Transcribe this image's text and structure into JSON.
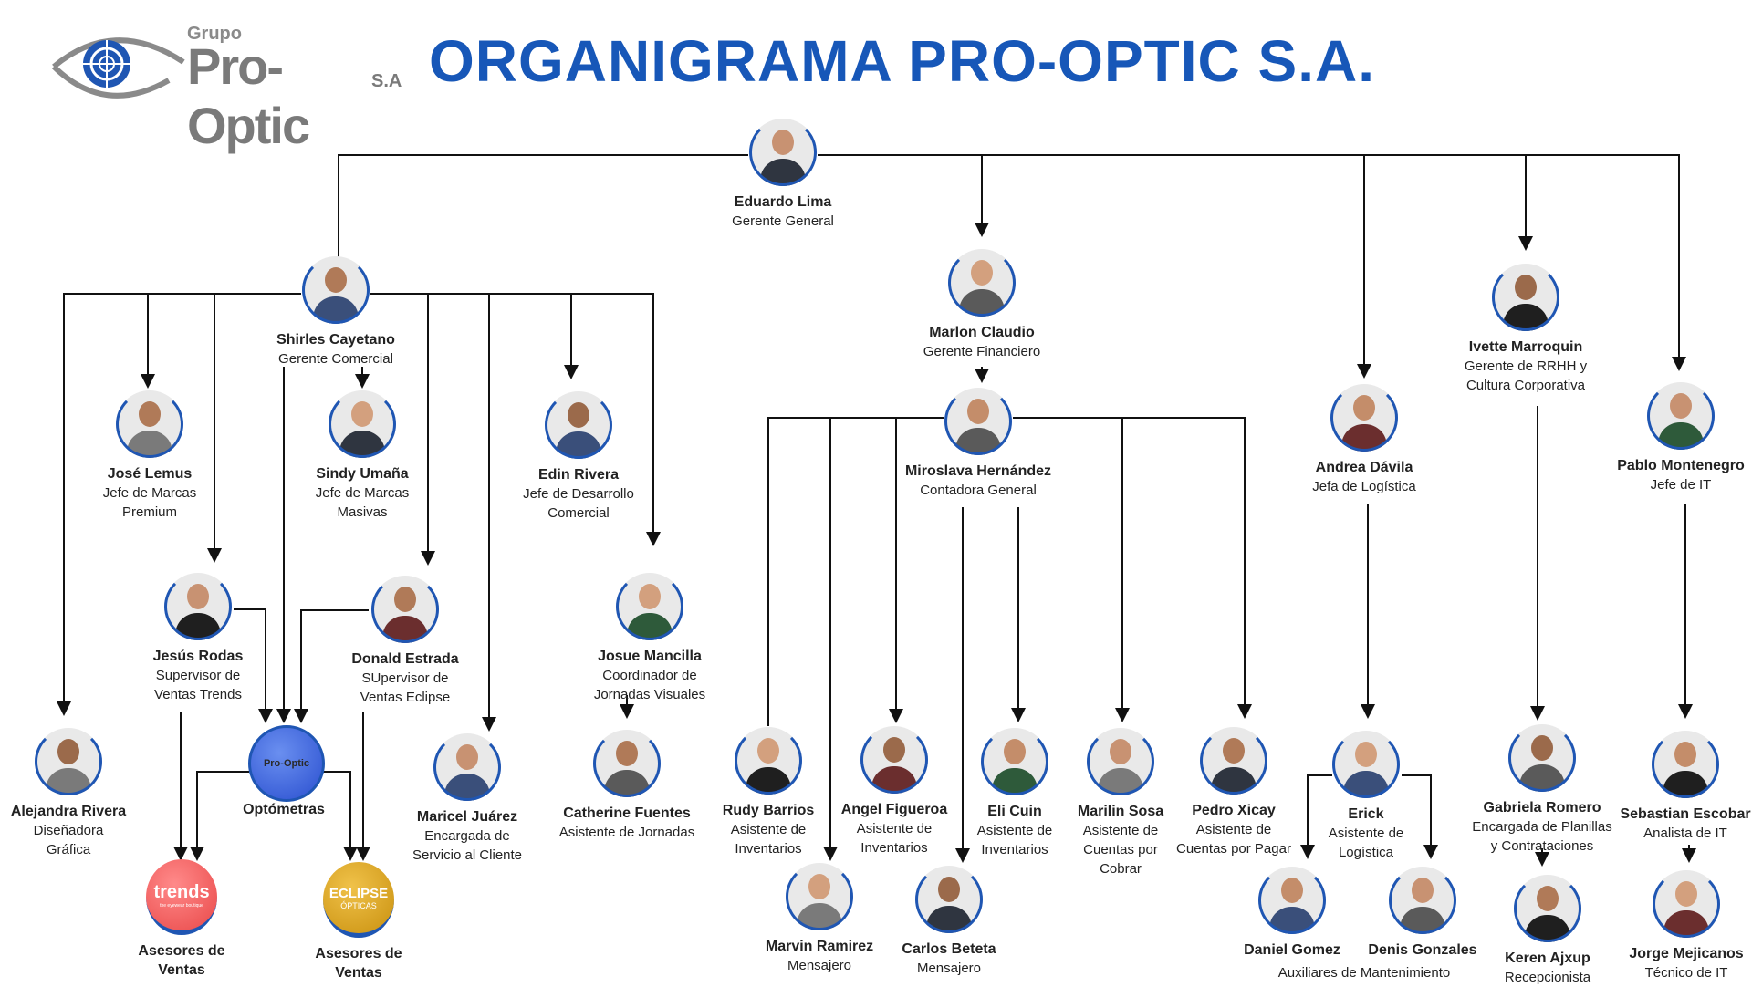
{
  "header": {
    "logo_small": "Grupo",
    "logo_brand": "Pro-Optic",
    "logo_suffix": "S.A",
    "title": "ORGANIGRAMA PRO-OPTIC S.A."
  },
  "colors": {
    "title": "#1757b8",
    "ring": "#1f56b3",
    "line": "#111111"
  },
  "people": [
    {
      "id": "eduardo",
      "name": "Eduardo Lima",
      "role": [
        "Gerente General"
      ]
    },
    {
      "id": "shirles",
      "name": "Shirles Cayetano",
      "role": [
        "Gerente Comercial"
      ]
    },
    {
      "id": "marlon",
      "name": "Marlon Claudio",
      "role": [
        "Gerente Financiero"
      ]
    },
    {
      "id": "ivette",
      "name": "Ivette Marroquin",
      "role": [
        "Gerente de RRHH y",
        "Cultura Corporativa"
      ]
    },
    {
      "id": "andrea",
      "name": "Andrea Dávila",
      "role": [
        "Jefa de Logística"
      ]
    },
    {
      "id": "pablo",
      "name": "Pablo Montenegro",
      "role": [
        "Jefe de IT"
      ]
    },
    {
      "id": "jose",
      "name": "José Lemus",
      "role": [
        "Jefe de Marcas",
        "Premium"
      ]
    },
    {
      "id": "sindy",
      "name": "Sindy Umaña",
      "role": [
        "Jefe de Marcas",
        "Masivas"
      ]
    },
    {
      "id": "edin",
      "name": "Edin Rivera",
      "role": [
        "Jefe de Desarrollo",
        "Comercial"
      ]
    },
    {
      "id": "miroslava",
      "name": "Miroslava Hernández",
      "role": [
        "Contadora General"
      ]
    },
    {
      "id": "jesus",
      "name": "Jesús Rodas",
      "role": [
        "Supervisor de",
        "Ventas Trends"
      ]
    },
    {
      "id": "donald",
      "name": "Donald Estrada",
      "role": [
        "SUpervisor de",
        "Ventas Eclipse"
      ]
    },
    {
      "id": "josue",
      "name": "Josue Mancilla",
      "role": [
        "Coordinador de",
        "Jornadas Visuales"
      ]
    },
    {
      "id": "alejandra",
      "name": "Alejandra Rivera",
      "role": [
        "Diseñadora",
        "Gráfica"
      ]
    },
    {
      "id": "optometras",
      "name": "Optómetras",
      "role": [],
      "kind": "group",
      "img": "Pro-Optic"
    },
    {
      "id": "maricel",
      "name": "Maricel Juárez",
      "role": [
        "Encargada de",
        "Servicio al Cliente"
      ]
    },
    {
      "id": "catherine",
      "name": "Catherine Fuentes",
      "role": [
        "Asistente de Jornadas"
      ]
    },
    {
      "id": "rudy",
      "name": "Rudy Barrios",
      "role": [
        "Asistente de",
        "Inventarios"
      ]
    },
    {
      "id": "angel",
      "name": "Angel Figueroa",
      "role": [
        "Asistente de",
        "Inventarios"
      ]
    },
    {
      "id": "eli",
      "name": "Eli Cuin",
      "role": [
        "Asistente de",
        "Inventarios"
      ]
    },
    {
      "id": "marilin",
      "name": "Marilin Sosa",
      "role": [
        "Asistente de",
        "Cuentas por",
        "Cobrar"
      ]
    },
    {
      "id": "pedro",
      "name": "Pedro Xicay",
      "role": [
        "Asistente de",
        "Cuentas por Pagar"
      ]
    },
    {
      "id": "erick",
      "name": "Erick",
      "role": [
        "Asistente de",
        "Logística"
      ]
    },
    {
      "id": "gabriela",
      "name": "Gabriela Romero",
      "role": [
        "Encargada de Planillas",
        "y Contrataciones"
      ]
    },
    {
      "id": "sebastian",
      "name": "Sebastian Escobar",
      "role": [
        "Analista de IT"
      ]
    },
    {
      "id": "trends",
      "name": "Asesores de",
      "role": [
        "Ventas"
      ],
      "kind": "group",
      "img": "trends",
      "img_sub": "the eyewear boutique"
    },
    {
      "id": "eclipse",
      "name": "Asesores de",
      "role": [
        "Ventas"
      ],
      "kind": "group",
      "img": "ECLIPSE",
      "img_sub": "ÓPTICAS"
    },
    {
      "id": "marvin",
      "name": "Marvin Ramirez",
      "role": [
        "Mensajero"
      ]
    },
    {
      "id": "carlos",
      "name": "Carlos Beteta",
      "role": [
        "Mensajero"
      ]
    },
    {
      "id": "daniel",
      "name": "Daniel Gomez",
      "role": []
    },
    {
      "id": "denis",
      "name": "Denis Gonzales",
      "role": []
    },
    {
      "id": "keren",
      "name": "Keren Ajxup",
      "role": [
        "Recepcionista"
      ]
    },
    {
      "id": "jorge",
      "name": "Jorge Mejicanos",
      "role": [
        "Técnico de IT"
      ]
    }
  ],
  "shared_labels": [
    {
      "id": "auxiliares",
      "text": "Auxiliares de Mantenimiento"
    }
  ]
}
